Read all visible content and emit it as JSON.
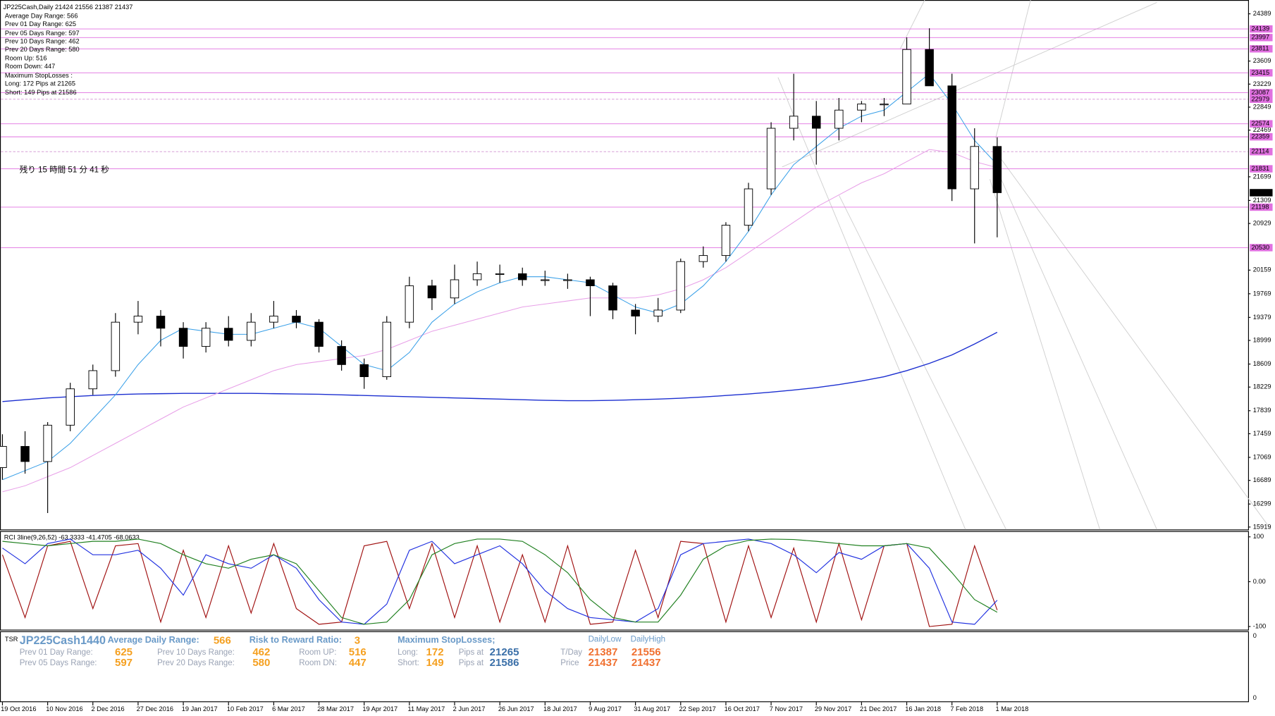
{
  "header": {
    "lines": [
      "JP225Cash,Daily  21424 21556 21387 21437",
      "Average Day  Range: 566",
      "Prev 01  Day  Range: 625",
      "Prev 05  Days Range: 597",
      "Prev 10  Days Range: 462",
      "Prev 20  Days Range: 580",
      "Room Up:   516",
      "Room Down: 447",
      "Maximum StopLosses :",
      "Long:  172 Pips at 21265",
      "Short: 149 Pips at 21586"
    ],
    "countdown": "残り 15 時間 51 分 41 秒"
  },
  "chart_data": [
    {
      "type": "candlestick",
      "categories": [
        "19 Oct 2016",
        null,
        "10 Nov 2016",
        null,
        "2 Dec 2016",
        null,
        "27 Dec 2016",
        null,
        "19 Jan 2017",
        null,
        "10 Feb 2017",
        null,
        "6 Mar 2017",
        null,
        "28 Mar 2017",
        null,
        "19 Apr 2017",
        null,
        "11 May 2017",
        null,
        "2 Jun 2017",
        null,
        "26 Jun 2017",
        null,
        "18 Jul 2017",
        null,
        "9 Aug 2017",
        null,
        "31 Aug 2017",
        null,
        "22 Sep 2017",
        null,
        "16 Oct 2017",
        null,
        "7 Nov 2017",
        null,
        "29 Nov 2017",
        null,
        "21 Dec 2017",
        null,
        "16 Jan 2018",
        null,
        "7 Feb 2018",
        null,
        "1 Mar 2018"
      ],
      "open": [
        16900,
        17250,
        17000,
        17600,
        18200,
        18500,
        19300,
        19400,
        19200,
        18900,
        19200,
        19000,
        19300,
        19400,
        19300,
        18900,
        18600,
        18400,
        19300,
        19900,
        19700,
        20000,
        20100,
        20100,
        20000,
        20000,
        20000,
        19900,
        19500,
        19400,
        19500,
        20300,
        20400,
        20900,
        21500,
        22500,
        22700,
        22500,
        22800,
        22900,
        22900,
        23800,
        23200,
        21500,
        22200
      ],
      "high": [
        17450,
        17500,
        17650,
        18300,
        18600,
        19450,
        19650,
        19500,
        19300,
        19300,
        19400,
        19450,
        19650,
        19500,
        19350,
        19000,
        18700,
        19400,
        20050,
        20000,
        20250,
        20300,
        20250,
        20200,
        20150,
        20100,
        20050,
        19950,
        19600,
        19700,
        20350,
        20550,
        20950,
        21600,
        22600,
        23400,
        22950,
        23000,
        22950,
        23000,
        24000,
        24150,
        23400,
        22500,
        22350
      ],
      "low": [
        16700,
        16800,
        16150,
        17500,
        18100,
        18400,
        19100,
        18900,
        18700,
        18800,
        18900,
        18900,
        19200,
        19200,
        18800,
        18500,
        18200,
        18350,
        19200,
        19500,
        19600,
        19900,
        19950,
        19900,
        19900,
        19850,
        19400,
        19350,
        19100,
        19300,
        19450,
        20200,
        20300,
        20800,
        21400,
        22300,
        21900,
        22300,
        22600,
        22700,
        22900,
        23200,
        21300,
        20600,
        20700
      ],
      "close": [
        17250,
        17000,
        17600,
        18200,
        18500,
        19300,
        19400,
        19200,
        18900,
        19200,
        19000,
        19300,
        19400,
        19300,
        18900,
        18600,
        18400,
        19300,
        19900,
        19700,
        20000,
        20100,
        20100,
        20000,
        20000,
        20000,
        19900,
        19500,
        19400,
        19500,
        20300,
        20400,
        20900,
        21500,
        22500,
        22700,
        22500,
        22800,
        22900,
        22900,
        23800,
        23200,
        21500,
        22200,
        21437
      ],
      "series": [
        {
          "color": "#1c2fd0",
          "values": [
            17990,
            18020,
            18050,
            18070,
            18090,
            18105,
            18115,
            18120,
            18125,
            18125,
            18125,
            18125,
            18120,
            18115,
            18110,
            18100,
            18090,
            18080,
            18070,
            18060,
            18050,
            18040,
            18030,
            18020,
            18010,
            18005,
            18005,
            18010,
            18020,
            18030,
            18045,
            18065,
            18090,
            18115,
            18145,
            18180,
            18220,
            18270,
            18330,
            18400,
            18500,
            18620,
            18760,
            18940,
            19133
          ]
        },
        {
          "color": "#e8a0e8",
          "values": [
            16500,
            16600,
            16750,
            16900,
            17100,
            17300,
            17500,
            17700,
            17900,
            18050,
            18200,
            18350,
            18500,
            18600,
            18650,
            18700,
            18750,
            18850,
            19000,
            19150,
            19250,
            19350,
            19450,
            19550,
            19600,
            19650,
            19700,
            19700,
            19700,
            19750,
            19850,
            20000,
            20200,
            20450,
            20700,
            20950,
            21200,
            21400,
            21600,
            21750,
            21950,
            22150,
            22100,
            21950,
            21850
          ]
        },
        {
          "color": "#3aa0e8",
          "values": [
            16700,
            16850,
            17000,
            17300,
            17700,
            18100,
            18600,
            19000,
            19200,
            19150,
            19100,
            19100,
            19200,
            19300,
            19200,
            18900,
            18600,
            18500,
            18800,
            19300,
            19600,
            19800,
            19950,
            20050,
            20050,
            20000,
            19950,
            19750,
            19550,
            19450,
            19600,
            19900,
            20300,
            20800,
            21400,
            21900,
            22200,
            22500,
            22700,
            22800,
            23100,
            23400,
            22900,
            22300,
            21900
          ]
        }
      ],
      "levels": [
        24139,
        23997,
        23811,
        23415,
        23087,
        22979,
        22574,
        22359,
        22114,
        21831,
        21198,
        20530
      ],
      "level_color": "#e070e0",
      "last_price": 21437,
      "ylim": [
        15879,
        24617
      ],
      "yticks": [
        24389,
        23609,
        23229,
        22849,
        22469,
        21699,
        21309,
        20929,
        20159,
        19769,
        19379,
        18999,
        18609,
        18229,
        17839,
        17459,
        17069,
        16689,
        16299,
        15919
      ]
    },
    {
      "type": "line",
      "title": "RCI 3line(9,26,52) -63.3333 -41.4705 -68.0633",
      "series": [
        {
          "color": "#a01010",
          "values": [
            60,
            -80,
            80,
            90,
            -60,
            80,
            85,
            -90,
            70,
            -80,
            80,
            -70,
            85,
            -60,
            -95,
            -90,
            80,
            90,
            -60,
            85,
            -80,
            80,
            -90,
            60,
            -90,
            80,
            -95,
            -90,
            70,
            -80,
            90,
            85,
            -90,
            80,
            -80,
            75,
            -90,
            85,
            -85,
            80,
            85,
            -100,
            -95,
            80,
            -63.3333
          ]
        },
        {
          "color": "#2030e0",
          "values": [
            75,
            40,
            85,
            95,
            60,
            60,
            70,
            30,
            -30,
            60,
            40,
            30,
            60,
            30,
            -40,
            -90,
            -95,
            -50,
            70,
            90,
            40,
            60,
            80,
            40,
            -20,
            -60,
            -80,
            -85,
            -90,
            -60,
            60,
            85,
            90,
            95,
            85,
            60,
            20,
            65,
            50,
            80,
            85,
            30,
            -90,
            -95,
            -41.4705
          ]
        },
        {
          "color": "#208020",
          "values": [
            90,
            85,
            80,
            85,
            90,
            90,
            95,
            85,
            60,
            40,
            30,
            50,
            60,
            40,
            -20,
            -80,
            -95,
            -90,
            -40,
            60,
            85,
            95,
            95,
            90,
            60,
            20,
            -40,
            -80,
            -90,
            -90,
            -30,
            50,
            80,
            92,
            95,
            94,
            90,
            85,
            80,
            80,
            85,
            75,
            20,
            -40,
            -68.0633
          ]
        }
      ],
      "ylim": [
        -107,
        111
      ],
      "yticks": [
        100,
        {
          "value": 0,
          "label": "0.00"
        },
        -100
      ]
    }
  ],
  "panel": {
    "tag": "TSR",
    "symbol": "JP225Cash1440",
    "adr_label": "Average Daily Range:",
    "adr": "566",
    "rr_label": "Risk to Reward Ratio:",
    "rr": "3",
    "msl_label": "Maximum StopLosses;",
    "low_head": "DailyLow",
    "high_head": "DailyHigh",
    "rows": [
      [
        "Prev 01 Day Range:",
        "625",
        "Prev 10 Days Range:",
        "462",
        "Room UP:",
        "516",
        "Long:",
        "172",
        "Pips at",
        "21265",
        "T/Day",
        "21387",
        "21556"
      ],
      [
        "Prev 05 Days Range:",
        "597",
        "Prev 20 Days Range:",
        "580",
        "Room DN:",
        "447",
        "Short:",
        "149",
        "Pips at",
        "21586",
        "Price",
        "21437",
        "21437"
      ]
    ],
    "axis": [
      "0",
      "0"
    ]
  }
}
